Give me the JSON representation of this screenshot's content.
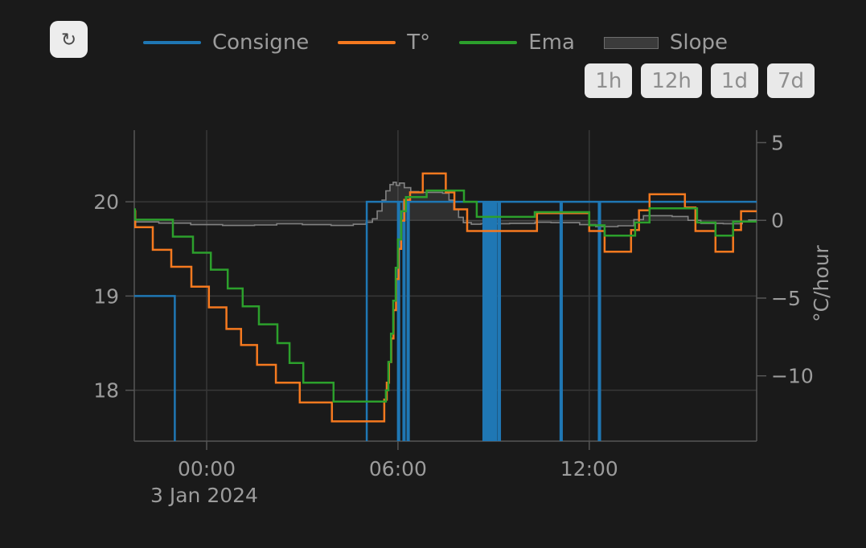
{
  "toolbar": {
    "refresh_icon": "↻"
  },
  "range_buttons": [
    "1h",
    "12h",
    "1d",
    "7d"
  ],
  "colors": {
    "background": "#1a1a1a",
    "grid": "#383838",
    "zero_line": "#414141",
    "axis": "#565656",
    "text": "#9c9c9c",
    "button_bg": "#e9e9e9",
    "button_text": "#8f8f8f",
    "consigne": "#1f77b4",
    "temperature": "#f5791f",
    "ema": "#2ca02c",
    "slope_line": "#828282",
    "slope_fill": "rgba(170,170,170,0.15)"
  },
  "chart_data": {
    "type": "line",
    "title": "",
    "x_axis": {
      "range": [
        -2.27,
        17.25
      ],
      "ticks": [
        {
          "t": 0,
          "label": "00:00"
        },
        {
          "t": 6,
          "label": "06:00"
        },
        {
          "t": 12,
          "label": "12:00"
        }
      ],
      "date_label": "3 Jan 2024"
    },
    "y_left": {
      "range": [
        17.46,
        20.76
      ],
      "ticks": [
        {
          "v": 20,
          "label": "20"
        },
        {
          "v": 19,
          "label": "19"
        },
        {
          "v": 18,
          "label": "18"
        }
      ]
    },
    "y_right": {
      "label": "°C/hour",
      "range": [
        -14.2,
        5.8
      ],
      "zero_line": true,
      "ticks": [
        {
          "v": 5,
          "label": "5"
        },
        {
          "v": 0,
          "label": "0"
        },
        {
          "v": -5,
          "label": "−5"
        },
        {
          "v": -10,
          "label": "−10"
        }
      ]
    },
    "series": [
      {
        "name": "Slope",
        "axis": "right",
        "color": "#828282",
        "area": true,
        "points": [
          [
            -2.27,
            -0.1
          ],
          [
            -1.5,
            -0.18
          ],
          [
            -0.5,
            -0.28
          ],
          [
            0.5,
            -0.33
          ],
          [
            1.5,
            -0.3
          ],
          [
            2.2,
            -0.22
          ],
          [
            3.0,
            -0.28
          ],
          [
            3.9,
            -0.33
          ],
          [
            4.6,
            -0.25
          ],
          [
            5.0,
            -0.12
          ],
          [
            5.2,
            0.1
          ],
          [
            5.35,
            0.6
          ],
          [
            5.5,
            1.3
          ],
          [
            5.62,
            1.9
          ],
          [
            5.75,
            2.3
          ],
          [
            5.85,
            2.45
          ],
          [
            5.95,
            2.25
          ],
          [
            6.05,
            2.4
          ],
          [
            6.2,
            2.1
          ],
          [
            6.4,
            1.85
          ],
          [
            6.65,
            1.8
          ],
          [
            7.4,
            1.75
          ],
          [
            7.6,
            1.3
          ],
          [
            7.75,
            0.7
          ],
          [
            7.9,
            0.2
          ],
          [
            8.05,
            -0.15
          ],
          [
            8.3,
            -0.25
          ],
          [
            8.6,
            -0.22
          ],
          [
            9.5,
            -0.2
          ],
          [
            10.3,
            -0.12
          ],
          [
            10.8,
            -0.15
          ],
          [
            11.7,
            -0.28
          ],
          [
            12.2,
            -0.4
          ],
          [
            12.9,
            -0.35
          ],
          [
            13.4,
            0.05
          ],
          [
            13.7,
            0.3
          ],
          [
            14.6,
            0.25
          ],
          [
            15.1,
            0.0
          ],
          [
            15.5,
            -0.2
          ],
          [
            16.2,
            -0.22
          ],
          [
            16.8,
            -0.08
          ],
          [
            17.0,
            0.02
          ]
        ]
      },
      {
        "name": "Consigne",
        "axis": "left",
        "color": "#1f77b4",
        "area": false,
        "points": [
          [
            -2.27,
            19
          ],
          [
            -1.0,
            16.5
          ],
          [
            5.02,
            20
          ],
          [
            6.0,
            16.5
          ],
          [
            6.04,
            20
          ],
          [
            6.17,
            16.5
          ],
          [
            6.21,
            20
          ],
          [
            6.3,
            16.5
          ],
          [
            6.34,
            20
          ],
          [
            8.68,
            16.5
          ],
          [
            8.72,
            20
          ],
          [
            8.78,
            16.5
          ],
          [
            8.82,
            20
          ],
          [
            8.87,
            16.5
          ],
          [
            8.91,
            20
          ],
          [
            8.96,
            16.5
          ],
          [
            9.0,
            20
          ],
          [
            9.05,
            16.5
          ],
          [
            9.09,
            20
          ],
          [
            9.16,
            16.5
          ],
          [
            9.2,
            20
          ],
          [
            11.1,
            16.5
          ],
          [
            11.14,
            20
          ],
          [
            12.3,
            16.5
          ],
          [
            12.34,
            20
          ]
        ]
      },
      {
        "name": "T°",
        "axis": "left",
        "color": "#f5791f",
        "area": false,
        "points": [
          [
            -2.27,
            19.9
          ],
          [
            -2.24,
            19.73
          ],
          [
            -1.69,
            19.49
          ],
          [
            -1.11,
            19.31
          ],
          [
            -0.48,
            19.1
          ],
          [
            0.07,
            18.88
          ],
          [
            0.62,
            18.65
          ],
          [
            1.08,
            18.48
          ],
          [
            1.58,
            18.27
          ],
          [
            2.17,
            18.08
          ],
          [
            2.92,
            17.87
          ],
          [
            3.93,
            17.67
          ],
          [
            5.57,
            17.9
          ],
          [
            5.65,
            18.08
          ],
          [
            5.72,
            18.3
          ],
          [
            5.79,
            18.55
          ],
          [
            5.86,
            18.85
          ],
          [
            5.94,
            19.18
          ],
          [
            6.02,
            19.5
          ],
          [
            6.1,
            19.8
          ],
          [
            6.2,
            20.02
          ],
          [
            6.38,
            20.1
          ],
          [
            6.78,
            20.3
          ],
          [
            7.5,
            20.1
          ],
          [
            7.77,
            19.92
          ],
          [
            8.17,
            19.69
          ],
          [
            10.36,
            19.88
          ],
          [
            12.0,
            19.69
          ],
          [
            12.48,
            19.47
          ],
          [
            13.31,
            19.7
          ],
          [
            13.56,
            19.91
          ],
          [
            13.89,
            20.08
          ],
          [
            15.0,
            19.94
          ],
          [
            15.33,
            19.69
          ],
          [
            15.96,
            19.47
          ],
          [
            16.51,
            19.7
          ],
          [
            16.76,
            19.9
          ]
        ]
      },
      {
        "name": "Ema",
        "axis": "left",
        "color": "#2ca02c",
        "area": false,
        "points": [
          [
            -2.27,
            19.92
          ],
          [
            -2.25,
            19.81
          ],
          [
            -1.06,
            19.63
          ],
          [
            -0.43,
            19.46
          ],
          [
            0.13,
            19.28
          ],
          [
            0.66,
            19.08
          ],
          [
            1.13,
            18.89
          ],
          [
            1.64,
            18.7
          ],
          [
            2.22,
            18.5
          ],
          [
            2.6,
            18.29
          ],
          [
            3.03,
            18.08
          ],
          [
            3.98,
            17.88
          ],
          [
            5.62,
            18.0
          ],
          [
            5.7,
            18.3
          ],
          [
            5.78,
            18.6
          ],
          [
            5.85,
            18.95
          ],
          [
            5.93,
            19.3
          ],
          [
            6.0,
            19.6
          ],
          [
            6.1,
            19.9
          ],
          [
            6.25,
            20.05
          ],
          [
            6.9,
            20.12
          ],
          [
            8.07,
            20.0
          ],
          [
            8.47,
            19.84
          ],
          [
            10.29,
            19.89
          ],
          [
            12.0,
            19.75
          ],
          [
            12.48,
            19.64
          ],
          [
            13.44,
            19.78
          ],
          [
            13.89,
            19.93
          ],
          [
            15.38,
            19.78
          ],
          [
            15.96,
            19.64
          ],
          [
            16.51,
            19.79
          ]
        ]
      }
    ],
    "legend_order": [
      1,
      2,
      3,
      0
    ]
  }
}
